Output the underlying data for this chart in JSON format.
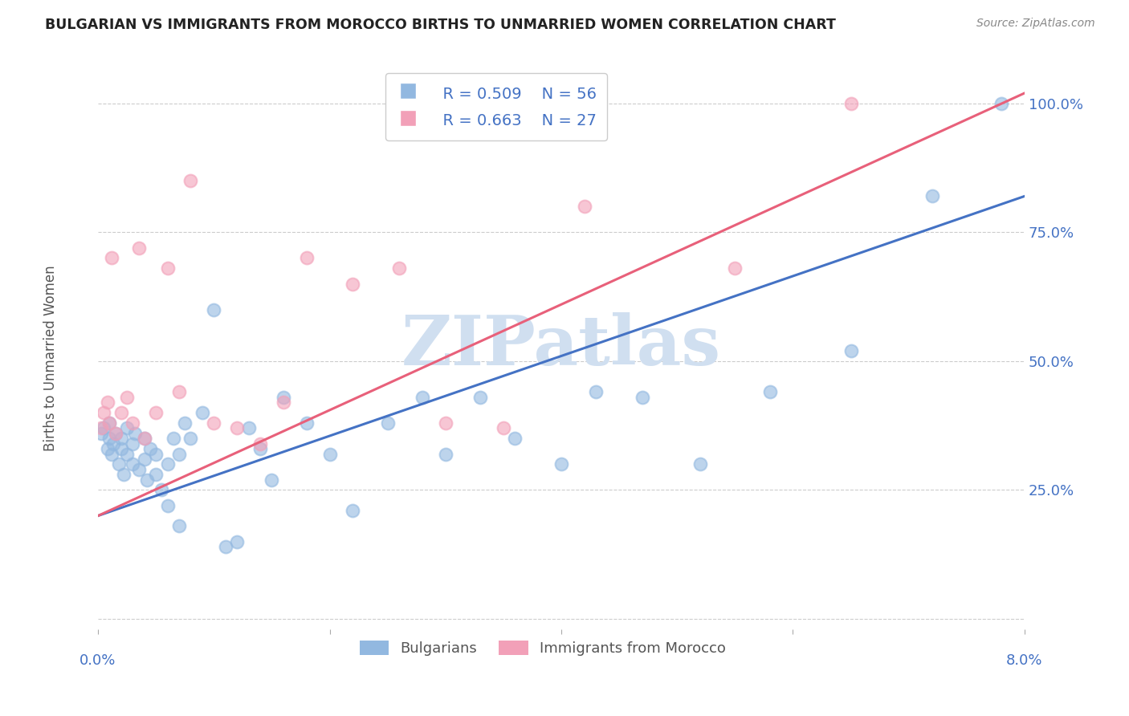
{
  "title": "BULGARIAN VS IMMIGRANTS FROM MOROCCO BIRTHS TO UNMARRIED WOMEN CORRELATION CHART",
  "source": "Source: ZipAtlas.com",
  "ylabel": "Births to Unmarried Women",
  "y_ticks": [
    0.0,
    0.25,
    0.5,
    0.75,
    1.0
  ],
  "y_tick_labels": [
    "",
    "25.0%",
    "50.0%",
    "75.0%",
    "100.0%"
  ],
  "xlim": [
    0.0,
    0.08
  ],
  "ylim": [
    -0.02,
    1.08
  ],
  "bulgarians_R": 0.509,
  "bulgarians_N": 56,
  "morocco_R": 0.663,
  "morocco_N": 27,
  "bulgarians_color": "#92b8e0",
  "morocco_color": "#f2a0b8",
  "bulgarians_line_color": "#4472c4",
  "morocco_line_color": "#e8607a",
  "bg_color": "#ffffff",
  "watermark_text": "ZIPatlas",
  "watermark_color": "#d0dff0",
  "bulgarians_x": [
    0.0003,
    0.0005,
    0.0008,
    0.001,
    0.001,
    0.0012,
    0.0013,
    0.0015,
    0.0018,
    0.002,
    0.002,
    0.0022,
    0.0025,
    0.0025,
    0.003,
    0.003,
    0.0032,
    0.0035,
    0.004,
    0.004,
    0.0042,
    0.0045,
    0.005,
    0.005,
    0.0055,
    0.006,
    0.006,
    0.0065,
    0.007,
    0.007,
    0.0075,
    0.008,
    0.009,
    0.01,
    0.011,
    0.012,
    0.013,
    0.014,
    0.015,
    0.016,
    0.018,
    0.02,
    0.022,
    0.025,
    0.028,
    0.03,
    0.033,
    0.036,
    0.04,
    0.043,
    0.047,
    0.052,
    0.058,
    0.065,
    0.072,
    0.078
  ],
  "bulgarians_y": [
    0.36,
    0.37,
    0.33,
    0.35,
    0.38,
    0.32,
    0.34,
    0.36,
    0.3,
    0.33,
    0.35,
    0.28,
    0.32,
    0.37,
    0.3,
    0.34,
    0.36,
    0.29,
    0.31,
    0.35,
    0.27,
    0.33,
    0.28,
    0.32,
    0.25,
    0.22,
    0.3,
    0.35,
    0.18,
    0.32,
    0.38,
    0.35,
    0.4,
    0.6,
    0.14,
    0.15,
    0.37,
    0.33,
    0.27,
    0.43,
    0.38,
    0.32,
    0.21,
    0.38,
    0.43,
    0.32,
    0.43,
    0.35,
    0.3,
    0.44,
    0.43,
    0.3,
    0.44,
    0.52,
    0.82,
    1.0
  ],
  "morocco_x": [
    0.0003,
    0.0005,
    0.0008,
    0.001,
    0.0012,
    0.0015,
    0.002,
    0.0025,
    0.003,
    0.0035,
    0.004,
    0.005,
    0.006,
    0.007,
    0.008,
    0.01,
    0.012,
    0.014,
    0.016,
    0.018,
    0.022,
    0.026,
    0.03,
    0.035,
    0.042,
    0.055,
    0.065
  ],
  "morocco_y": [
    0.37,
    0.4,
    0.42,
    0.38,
    0.7,
    0.36,
    0.4,
    0.43,
    0.38,
    0.72,
    0.35,
    0.4,
    0.68,
    0.44,
    0.85,
    0.38,
    0.37,
    0.34,
    0.42,
    0.7,
    0.65,
    0.68,
    0.38,
    0.37,
    0.8,
    0.68,
    1.0
  ],
  "bulgarians_line_x0": 0.0,
  "bulgarians_line_y0": 0.2,
  "bulgarians_line_x1": 0.08,
  "bulgarians_line_y1": 0.82,
  "morocco_line_x0": 0.0,
  "morocco_line_y0": 0.2,
  "morocco_line_x1": 0.08,
  "morocco_line_y1": 1.02
}
